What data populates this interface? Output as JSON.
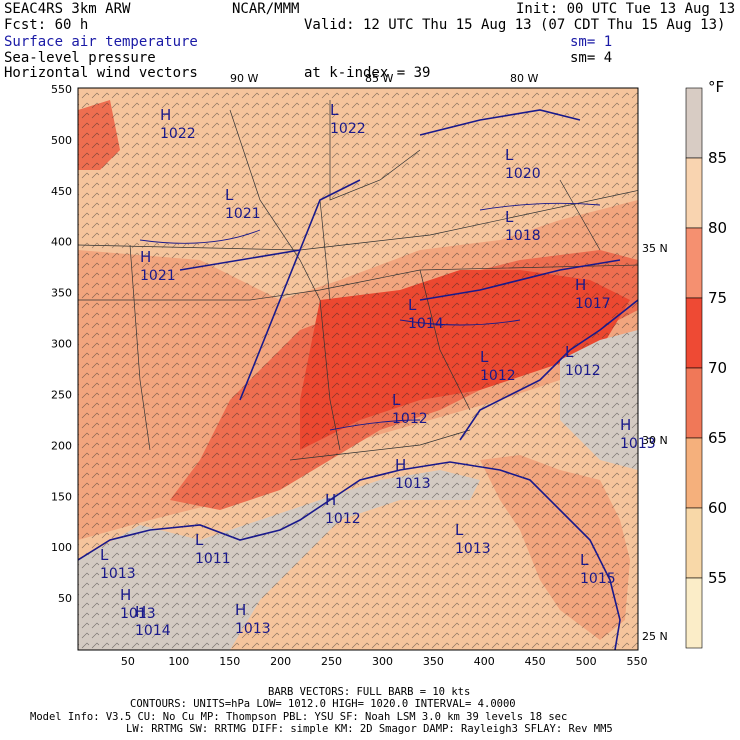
{
  "header": {
    "model": "SEAC4RS  3km ARW",
    "institution": "NCAR/MMM",
    "init": "Init: 00 UTC Tue 13 Aug 13",
    "fcst": "Fcst:   60 h",
    "valid": "Valid: 12 UTC Thu 15 Aug 13 (07 CDT Thu 15 Aug 13)",
    "field1": "Surface air temperature",
    "field1_sm": "sm= 1",
    "field2": "Sea-level pressure",
    "field2_sm": "sm= 4",
    "field3": "Horizontal wind vectors",
    "field3_level": "at k-index =  39"
  },
  "longitude_labels": [
    "90 W",
    "85 W",
    "80 W"
  ],
  "latitude_labels": [
    "35 N",
    "30 N",
    "25 N"
  ],
  "x_ticks": [
    "50",
    "100",
    "150",
    "200",
    "250",
    "300",
    "350",
    "400",
    "450",
    "500",
    "550"
  ],
  "y_ticks": [
    "550",
    "500",
    "450",
    "400",
    "350",
    "300",
    "250",
    "200",
    "150",
    "100",
    "50"
  ],
  "colorbar": {
    "unit": "°F",
    "labels": [
      "85",
      "80",
      "75",
      "70",
      "65",
      "60",
      "55"
    ],
    "colors": [
      "#d8ccc4",
      "#f9d4b0",
      "#f59070",
      "#ee4a34",
      "#f07858",
      "#f5b07c",
      "#f8d8a8",
      "#fbedc8"
    ]
  },
  "temperature_colors": {
    "gray": "#d3cac2",
    "cool": "#f7d8b4",
    "warm": "#f5c49c",
    "mid": "#f2a57e",
    "hot": "#ee6e50",
    "hottest": "#ec4830"
  },
  "pressure_centers": [
    {
      "type": "H",
      "value": "1022"
    },
    {
      "type": "L",
      "value": "1022"
    },
    {
      "type": "L",
      "value": "1020"
    },
    {
      "type": "H",
      "value": "1021"
    },
    {
      "type": "L",
      "value": "1021"
    },
    {
      "type": "L",
      "value": "1018"
    },
    {
      "type": "L",
      "value": "1014"
    },
    {
      "type": "H",
      "value": "1017"
    },
    {
      "type": "L",
      "value": "1012"
    },
    {
      "type": "L",
      "value": "1012"
    },
    {
      "type": "L",
      "value": "1012"
    },
    {
      "type": "H",
      "value": "1013"
    },
    {
      "type": "L",
      "value": "1013"
    },
    {
      "type": "H",
      "value": "1012"
    },
    {
      "type": "H",
      "value": "1013"
    },
    {
      "type": "L",
      "value": "1013"
    },
    {
      "type": "H",
      "value": "1014"
    },
    {
      "type": "L",
      "value": "1015"
    },
    {
      "type": "L",
      "value": "1011"
    },
    {
      "type": "H",
      "value": "1013"
    },
    {
      "type": "H",
      "value": "1013"
    }
  ],
  "footer": {
    "barb": "BARB VECTORS:  FULL BARB = 10 kts",
    "contours": "CONTOURS:  UNITS=hPa  LOW=  1012.0      HIGH=  1020.0      INTERVAL=    4.0000",
    "model_info": "Model Info: V3.5     CU: No Cu     MP: Thompson     PBL: YSU      SF: Noah LSM     3.0 km   39 levels   18 sec",
    "model_info2": "LW: RRTMG    SW: RRTMG   DIFF: simple KM: 2D Smagor DAMP: Rayleigh3   SFLAY: Rev MM5"
  }
}
